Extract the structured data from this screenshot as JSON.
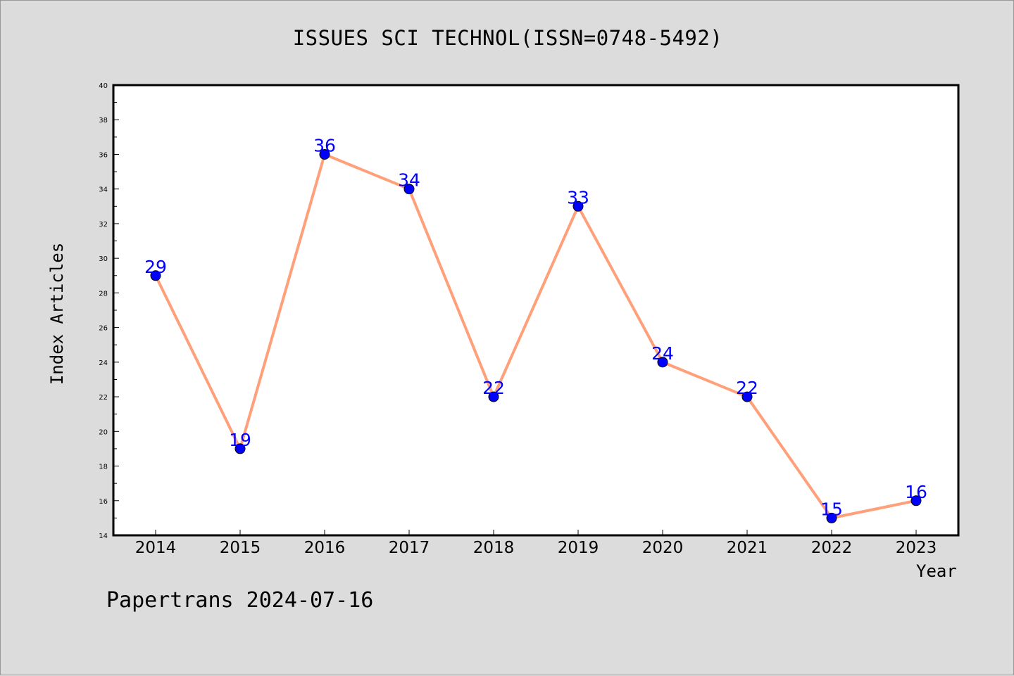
{
  "title": "ISSUES SCI TECHNOL(ISSN=0748-5492)",
  "footer": "Papertrans 2024-07-16",
  "colors": {
    "background": "#dcdcdc",
    "plot_background": "#ffffff",
    "line": "#ffa07a",
    "marker": "#0000ff",
    "data_label": "#0000ff"
  },
  "chart_data": {
    "type": "line",
    "title": "ISSUES SCI TECHNOL(ISSN=0748-5492)",
    "xlabel": "Year",
    "ylabel": "Index Articles",
    "categories": [
      "2014",
      "2015",
      "2016",
      "2017",
      "2018",
      "2019",
      "2020",
      "2021",
      "2022",
      "2023"
    ],
    "series": [
      {
        "values": [
          29,
          19,
          36,
          34,
          22,
          33,
          24,
          22,
          15,
          16
        ]
      }
    ],
    "ylim": [
      14,
      40
    ],
    "yticks": [
      14,
      16,
      18,
      20,
      22,
      24,
      26,
      28,
      30,
      32,
      34,
      36,
      38,
      40
    ],
    "grid": false,
    "legend": "none"
  }
}
